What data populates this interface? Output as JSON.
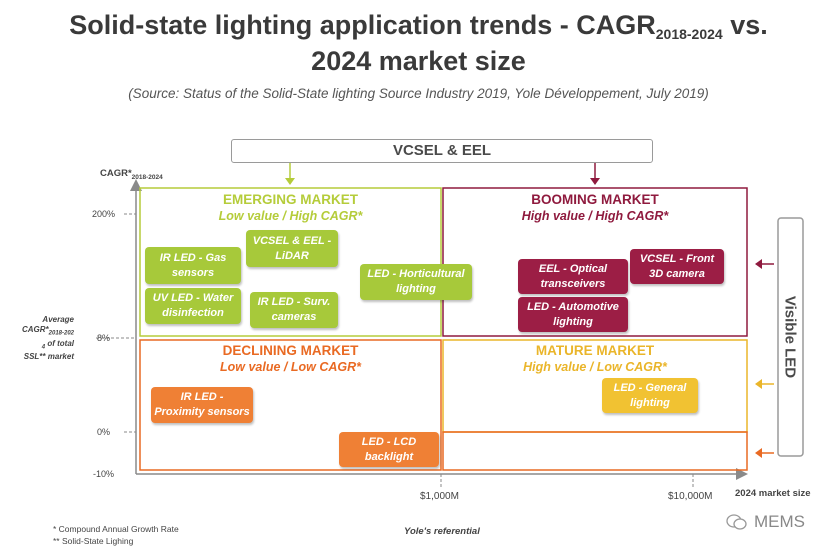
{
  "title": {
    "line1_main": "Solid-state lighting application trends - CAGR",
    "line1_sub": "2018-2024",
    "line1_end": " vs.",
    "line2": "2024 market size"
  },
  "source": "(Source: Status of the Solid-State lighting Source Industry 2019, Yole Développement, July 2019)",
  "top_band": "VCSEL & EEL",
  "side_band": "Visible LED",
  "y_axis": {
    "label_main": "CAGR*",
    "label_sub": "2018-2024",
    "ticks": [
      "200%",
      "8%",
      "0%",
      "-10%"
    ],
    "average_label": [
      "Average",
      "CAGR*",
      "2018-202",
      "4",
      "of total",
      "SSL** market"
    ]
  },
  "x_axis": {
    "label": "2024 market size",
    "ticks": [
      "$1,000M",
      "$10,000M"
    ],
    "referential": "Yole's referential"
  },
  "quadrants": {
    "emerging": {
      "title": "EMERGING MARKET",
      "subtitle": "Low value / High CAGR*",
      "color": "#b5cc3a"
    },
    "booming": {
      "title": "BOOMING MARKET",
      "subtitle": "High value / High CAGR*",
      "color": "#8f1a3e"
    },
    "declining": {
      "title": "DECLINING MARKET",
      "subtitle": "Low value / Low CAGR*",
      "color": "#e96a23"
    },
    "mature": {
      "title": "MATURE MARKET",
      "subtitle": "High value / Low CAGR*",
      "color": "#eab52a"
    }
  },
  "applications": {
    "ir_led_gas": [
      "IR LED - Gas",
      "sensors"
    ],
    "vcsel_lidar": [
      "VCSEL & EEL -",
      "LiDAR"
    ],
    "uv_led": [
      "UV LED - Water",
      "disinfection"
    ],
    "ir_led_surv": [
      "IR LED - Surv.",
      "cameras"
    ],
    "led_horti": [
      "LED - Horticultural",
      "lighting"
    ],
    "eel_optical": [
      "EEL - Optical",
      "transceivers"
    ],
    "vcsel_front": [
      "VCSEL - Front",
      "3D camera"
    ],
    "led_auto": [
      "LED - Automotive",
      "lighting"
    ],
    "ir_led_prox": [
      "IR LED -",
      "Proximity sensors"
    ],
    "led_general": [
      "LED - General",
      "lighting"
    ],
    "led_lcd": [
      "LED - LCD",
      "backlight"
    ]
  },
  "footnotes": [
    "* Compound Annual Growth Rate",
    "** Solid-State Lighing"
  ],
  "watermark": "MEMS",
  "colors": {
    "green": "#a7c93a",
    "crimson": "#9c1e45",
    "orange": "#ef8035",
    "yellow": "#f1c232",
    "axis": "#8a8a8a"
  }
}
